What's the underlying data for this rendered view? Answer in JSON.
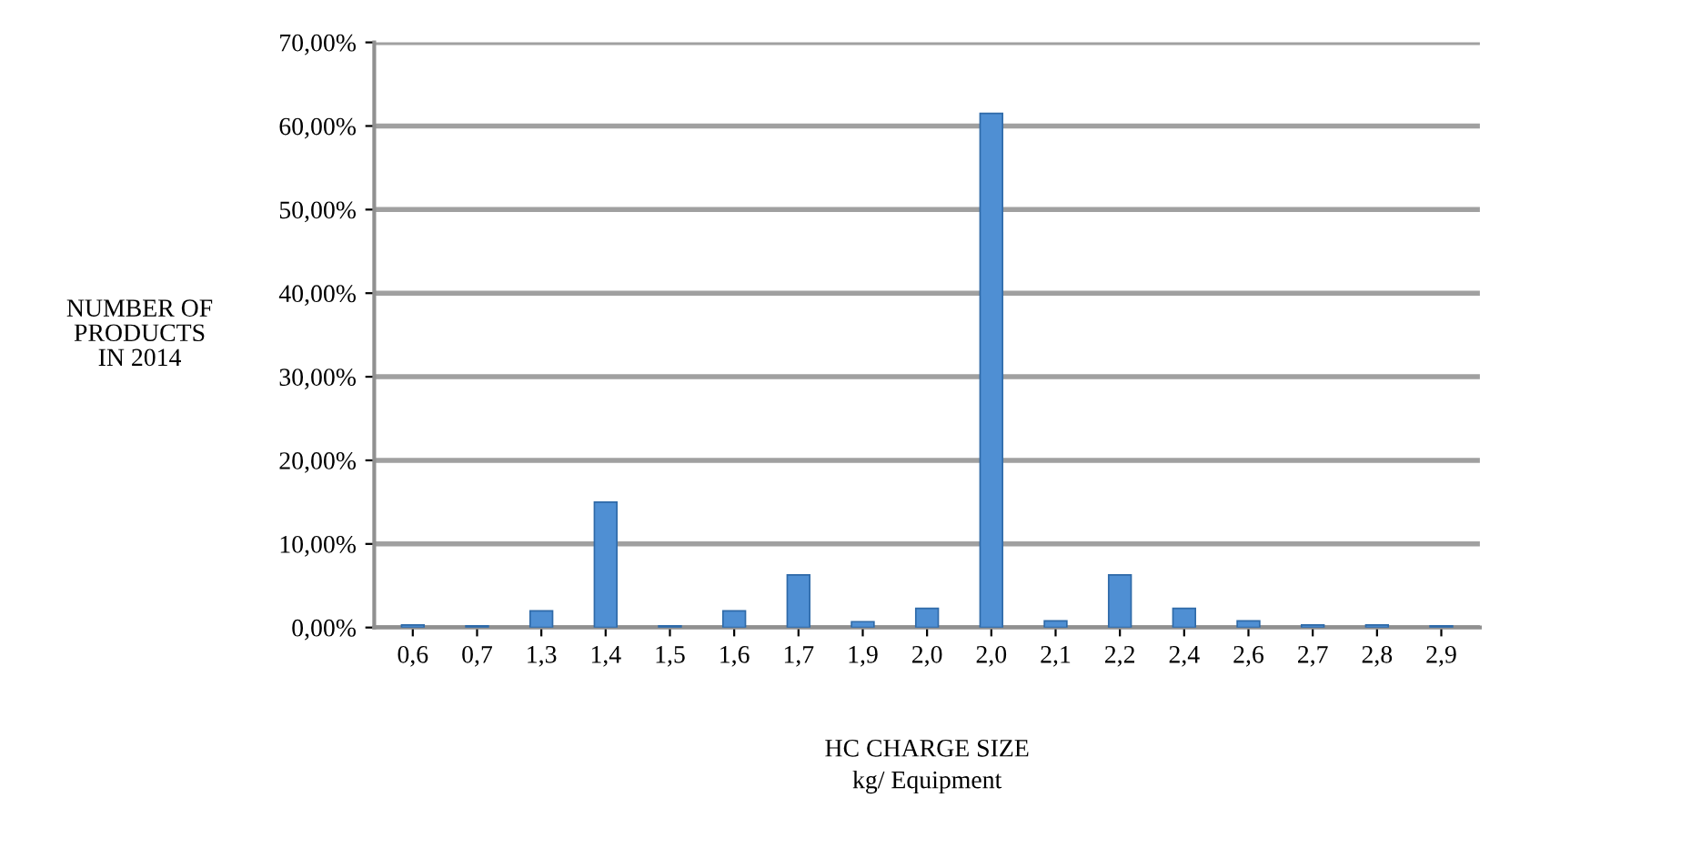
{
  "chart_data": {
    "type": "bar",
    "categories": [
      "0,6",
      "0,7",
      "1,3",
      "1,4",
      "1,5",
      "1,6",
      "1,7",
      "1,9",
      "2,0",
      "2,0",
      "2,1",
      "2,2",
      "2,4",
      "2,6",
      "2,7",
      "2,8",
      "2,9"
    ],
    "values": [
      0.3,
      0.2,
      2.0,
      15.0,
      0.2,
      2.0,
      6.3,
      0.7,
      2.3,
      61.5,
      0.8,
      6.3,
      2.3,
      0.8,
      0.3,
      0.3,
      0.2
    ],
    "color": "#4f8fd3",
    "ylim": [
      0,
      70
    ],
    "yticks": [
      {
        "value": 0,
        "label": "0,00%"
      },
      {
        "value": 10,
        "label": "10,00%"
      },
      {
        "value": 20,
        "label": "20,00%"
      },
      {
        "value": 30,
        "label": "30,00%"
      },
      {
        "value": 40,
        "label": "40,00%"
      },
      {
        "value": 50,
        "label": "50,00%"
      },
      {
        "value": 60,
        "label": "60,00%"
      },
      {
        "value": 70,
        "label": "70,00%"
      }
    ],
    "ylabel": "NUMBER OF\nPRODUCTS\nIN 2014",
    "xlabel": "HC CHARGE SIZE\nkg/ Equipment",
    "grid": "y"
  }
}
